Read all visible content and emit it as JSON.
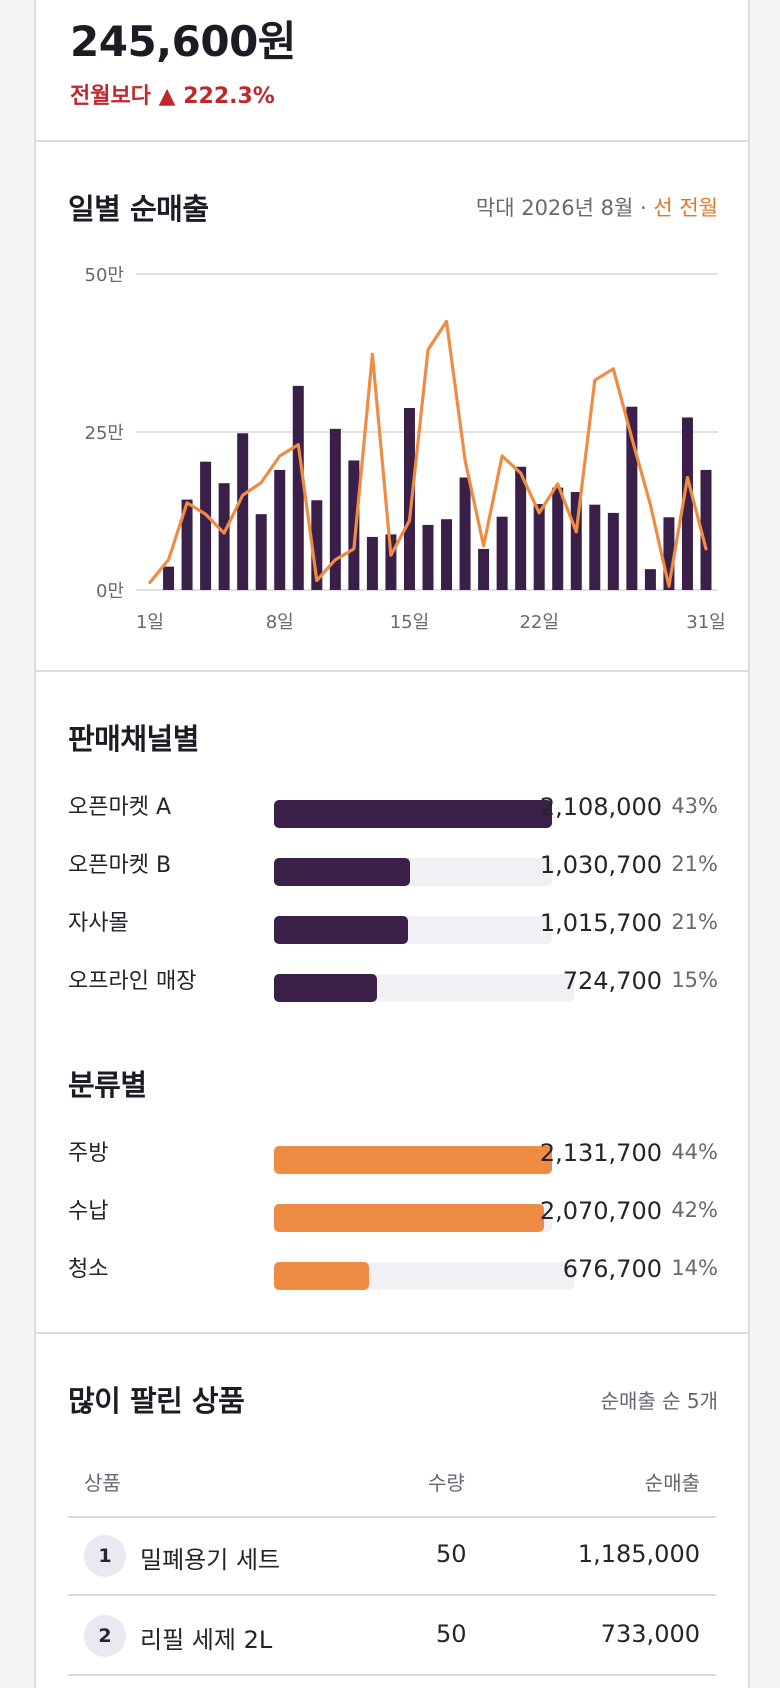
{
  "summary": {
    "amount": "245,600원",
    "change": "전월보다 ▲ 222.3%"
  },
  "daily": {
    "title": "일별 순매출",
    "legend_prefix": "막대 2026년 8월 · ",
    "legend_accent": "선 전월",
    "chart_data": {
      "type": "bar",
      "x": [
        1,
        2,
        3,
        4,
        5,
        6,
        7,
        8,
        9,
        10,
        11,
        12,
        13,
        14,
        15,
        16,
        17,
        18,
        19,
        20,
        21,
        22,
        23,
        24,
        25,
        26,
        27,
        28,
        29,
        30,
        31
      ],
      "x_tick_labels": [
        "1일",
        "8일",
        "15일",
        "22일",
        "31일"
      ],
      "y_tick_labels": [
        "50만",
        "25만",
        "0만"
      ],
      "ylim": [
        0,
        500000
      ],
      "series": [
        {
          "name": "2026년 8월",
          "kind": "bar",
          "color": "#3a1f49",
          "values": [
            0,
            37000,
            143000,
            203000,
            169000,
            248000,
            120000,
            190000,
            323000,
            142000,
            255000,
            205000,
            84000,
            88000,
            288000,
            103000,
            112000,
            178000,
            65000,
            116000,
            195000,
            136000,
            162000,
            155000,
            135000,
            122000,
            290000,
            33000,
            115000,
            273000,
            190000
          ]
        },
        {
          "name": "전월",
          "kind": "line",
          "color": "#ef8c44",
          "values": [
            12000,
            48000,
            138000,
            120000,
            90000,
            150000,
            170000,
            212000,
            230000,
            15000,
            48000,
            65000,
            373000,
            55000,
            110000,
            380000,
            425000,
            205000,
            70000,
            212000,
            185000,
            122000,
            168000,
            92000,
            332000,
            350000,
            240000,
            135000,
            6000,
            178000,
            65000
          ]
        }
      ],
      "grid": true
    }
  },
  "channels": {
    "title": "판매채널별",
    "color": "#3a1f49",
    "items": [
      {
        "label": "오픈마켓 A",
        "value": "2,108,000",
        "pct": "43%",
        "ratio": 1.0
      },
      {
        "label": "오픈마켓 B",
        "value": "1,030,700",
        "pct": "21%",
        "ratio": 0.489
      },
      {
        "label": "자사몰",
        "value": "1,015,700",
        "pct": "21%",
        "ratio": 0.482
      },
      {
        "label": "오프라인 매장",
        "value": "724,700",
        "pct": "15%",
        "ratio": 0.344
      }
    ]
  },
  "categories": {
    "title": "분류별",
    "color": "#ef8c44",
    "items": [
      {
        "label": "주방",
        "value": "2,131,700",
        "pct": "44%",
        "ratio": 1.0
      },
      {
        "label": "수납",
        "value": "2,070,700",
        "pct": "42%",
        "ratio": 0.971
      },
      {
        "label": "청소",
        "value": "676,700",
        "pct": "14%",
        "ratio": 0.317
      }
    ]
  },
  "top_products": {
    "title": "많이 팔린 상품",
    "subtitle": "순매출 순 5개",
    "columns": {
      "product": "상품",
      "qty": "수량",
      "sales": "순매출"
    },
    "rows": [
      {
        "rank": "1",
        "name": "밀폐용기 세트",
        "qty": "50",
        "sales": "1,185,000"
      },
      {
        "rank": "2",
        "name": "리필 세제 2L",
        "qty": "50",
        "sales": "733,000"
      }
    ]
  }
}
